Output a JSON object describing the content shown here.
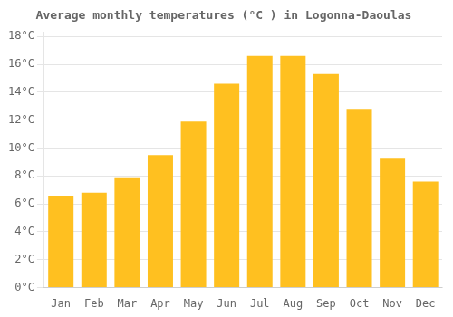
{
  "chart_data": {
    "type": "bar",
    "title": "Average monthly temperatures (°C ) in Logonna-Daoulas",
    "categories": [
      "Jan",
      "Feb",
      "Mar",
      "Apr",
      "May",
      "Jun",
      "Jul",
      "Aug",
      "Sep",
      "Oct",
      "Nov",
      "Dec"
    ],
    "values": [
      6.6,
      6.8,
      7.9,
      9.5,
      11.9,
      14.6,
      16.6,
      16.6,
      15.3,
      12.8,
      9.3,
      7.6
    ],
    "color": "#FFC020",
    "ylim": [
      0,
      18.3
    ],
    "yticks": [
      {
        "value": 0,
        "label": "0°C"
      },
      {
        "value": 2,
        "label": "2°C"
      },
      {
        "value": 4,
        "label": "4°C"
      },
      {
        "value": 6,
        "label": "6°C"
      },
      {
        "value": 8,
        "label": "8°C"
      },
      {
        "value": 10,
        "label": "10°C"
      },
      {
        "value": 12,
        "label": "12°C"
      },
      {
        "value": 14,
        "label": "14°C"
      },
      {
        "value": 16,
        "label": "16°C"
      },
      {
        "value": 18,
        "label": "18°C"
      }
    ],
    "grid": true
  }
}
